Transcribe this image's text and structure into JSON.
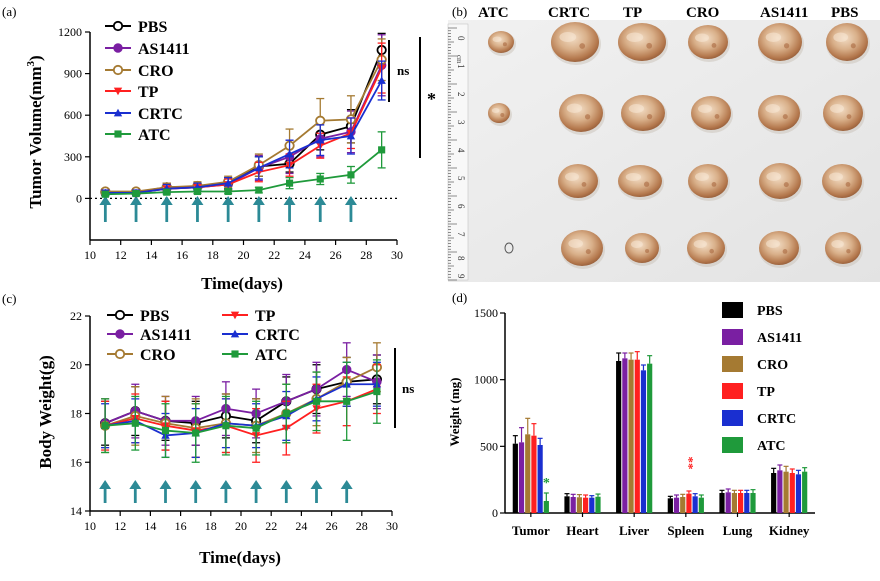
{
  "colors": {
    "PBS": "#000000",
    "AS1411": "#7a1fa2",
    "CRO": "#a57a32",
    "TP": "#ff2020",
    "CRTC": "#1a2fd0",
    "ATC": "#1f9a3b",
    "arrow": "#2c8a96"
  },
  "chart_data": [
    {
      "panel": "(a)",
      "type": "line",
      "xlabel": "Time(days)",
      "ylabel": "Tumor Volume(mm3)",
      "ylabel_main": "Tumor Volume(mm",
      "ylabel_sup": "3",
      "ylabel_end": ")",
      "xlim": [
        10,
        30
      ],
      "ylim": [
        -300,
        1200
      ],
      "xticks": [
        "10",
        "12",
        "14",
        "16",
        "18",
        "20",
        "22",
        "24",
        "26",
        "28",
        "30"
      ],
      "yticks": [
        "0",
        "300",
        "600",
        "900",
        "1200"
      ],
      "x": [
        11,
        13,
        15,
        17,
        19,
        21,
        23,
        25,
        27,
        29
      ],
      "arrow_days": [
        11,
        13,
        15,
        17,
        19,
        21,
        23,
        25,
        27
      ],
      "legend": [
        "PBS",
        "AS1411",
        "CRO",
        "TP",
        "CRTC",
        "ATC"
      ],
      "series": [
        {
          "name": "PBS",
          "marker": "circle-open",
          "values": [
            45,
            45,
            80,
            85,
            110,
            230,
            250,
            460,
            520,
            1070
          ],
          "err": [
            20,
            20,
            30,
            30,
            40,
            70,
            60,
            110,
            120,
            120
          ]
        },
        {
          "name": "AS1411",
          "marker": "circle",
          "values": [
            40,
            40,
            70,
            80,
            100,
            220,
            300,
            430,
            480,
            960
          ],
          "err": [
            20,
            20,
            30,
            30,
            40,
            90,
            120,
            130,
            150,
            220
          ]
        },
        {
          "name": "CRO",
          "marker": "circle-open",
          "values": [
            50,
            50,
            80,
            90,
            120,
            240,
            380,
            560,
            570,
            1000
          ],
          "err": [
            20,
            20,
            30,
            30,
            40,
            80,
            120,
            160,
            170,
            150
          ]
        },
        {
          "name": "TP",
          "marker": "triangle-down",
          "values": [
            40,
            40,
            70,
            80,
            100,
            190,
            240,
            380,
            470,
            940
          ],
          "err": [
            20,
            20,
            30,
            30,
            40,
            70,
            80,
            90,
            110,
            180
          ]
        },
        {
          "name": "CRTC",
          "marker": "triangle-up",
          "values": [
            40,
            40,
            70,
            80,
            110,
            220,
            320,
            420,
            450,
            850
          ],
          "err": [
            20,
            20,
            30,
            30,
            40,
            80,
            100,
            110,
            130,
            140
          ]
        },
        {
          "name": "ATC",
          "marker": "square",
          "values": [
            30,
            35,
            45,
            50,
            50,
            60,
            110,
            140,
            170,
            350
          ],
          "err": [
            10,
            10,
            15,
            15,
            15,
            20,
            40,
            40,
            60,
            130
          ]
        }
      ],
      "annotations": [
        "ns",
        "*"
      ]
    },
    {
      "panel": "(c)",
      "type": "line",
      "xlabel": "Time(days)",
      "ylabel": "Body Weight(g)",
      "xlim": [
        10,
        30
      ],
      "ylim": [
        14,
        22
      ],
      "xticks": [
        "10",
        "12",
        "14",
        "16",
        "18",
        "20",
        "22",
        "24",
        "26",
        "28",
        "30"
      ],
      "yticks": [
        "14",
        "16",
        "18",
        "20",
        "22"
      ],
      "x": [
        11,
        13,
        15,
        17,
        19,
        21,
        23,
        25,
        27,
        29
      ],
      "arrow_days": [
        11,
        13,
        15,
        17,
        19,
        21,
        23,
        25,
        27
      ],
      "legend": [
        "PBS",
        "TP",
        "AS1411",
        "CRTC",
        "CRO",
        "ATC"
      ],
      "series": [
        {
          "name": "PBS",
          "marker": "circle-open",
          "values": [
            17.6,
            18.1,
            17.7,
            17.6,
            17.9,
            17.7,
            18.5,
            19.0,
            19.3,
            19.4
          ],
          "err": [
            0.9,
            1.0,
            0.8,
            0.9,
            0.9,
            0.9,
            1.0,
            1.0,
            1.0,
            1.0
          ]
        },
        {
          "name": "AS1411",
          "marker": "circle",
          "values": [
            17.6,
            18.1,
            17.7,
            17.7,
            18.2,
            18.0,
            18.5,
            19.0,
            19.8,
            19.3
          ],
          "err": [
            1.0,
            1.1,
            1.0,
            1.0,
            1.1,
            1.0,
            1.1,
            1.1,
            1.1,
            1.1
          ]
        },
        {
          "name": "CRO",
          "marker": "circle-open",
          "values": [
            17.5,
            17.9,
            17.6,
            17.4,
            17.6,
            17.5,
            18.0,
            18.6,
            19.3,
            19.9
          ],
          "err": [
            1.1,
            1.2,
            1.1,
            1.2,
            1.2,
            1.1,
            1.2,
            1.1,
            1.0,
            1.0
          ]
        },
        {
          "name": "TP",
          "marker": "triangle-down",
          "values": [
            17.5,
            17.8,
            17.5,
            17.3,
            17.5,
            17.1,
            17.4,
            18.2,
            18.5,
            19.0
          ],
          "err": [
            1.0,
            1.0,
            1.0,
            1.1,
            1.1,
            1.1,
            1.1,
            1.0,
            1.0,
            1.0
          ]
        },
        {
          "name": "CRTC",
          "marker": "triangle-up",
          "values": [
            17.5,
            17.7,
            17.1,
            17.2,
            17.6,
            17.5,
            17.9,
            18.6,
            19.2,
            19.2
          ],
          "err": [
            0.9,
            0.9,
            0.9,
            1.0,
            1.0,
            0.9,
            1.0,
            0.9,
            0.9,
            0.9
          ]
        },
        {
          "name": "ATC",
          "marker": "square",
          "values": [
            17.5,
            17.6,
            17.3,
            17.2,
            17.5,
            17.4,
            18.0,
            18.5,
            18.5,
            18.9
          ],
          "err": [
            1.1,
            1.1,
            1.1,
            1.2,
            1.2,
            1.1,
            1.2,
            1.2,
            1.6,
            1.3
          ]
        }
      ],
      "annotations": [
        "ns"
      ]
    },
    {
      "panel": "(d)",
      "type": "bar",
      "ylabel": "Weight (mg)",
      "ylim": [
        0,
        1500
      ],
      "yticks": [
        "0",
        "500",
        "1000",
        "1500"
      ],
      "categories": [
        "Tumor",
        "Heart",
        "Liver",
        "Spleen",
        "Lung",
        "Kidney"
      ],
      "legend": [
        "PBS",
        "AS1411",
        "CRO",
        "TP",
        "CRTC",
        "ATC"
      ],
      "series": [
        {
          "name": "PBS",
          "values": [
            520,
            125,
            1140,
            110,
            150,
            300
          ],
          "err": [
            60,
            20,
            60,
            15,
            20,
            35
          ]
        },
        {
          "name": "AS1411",
          "values": [
            530,
            120,
            1160,
            115,
            155,
            320
          ],
          "err": [
            110,
            20,
            40,
            20,
            25,
            40
          ]
        },
        {
          "name": "CRO",
          "values": [
            590,
            118,
            1150,
            120,
            150,
            310
          ],
          "err": [
            120,
            20,
            50,
            20,
            20,
            40
          ]
        },
        {
          "name": "TP",
          "values": [
            580,
            115,
            1150,
            145,
            150,
            300
          ],
          "err": [
            90,
            20,
            60,
            20,
            20,
            30
          ]
        },
        {
          "name": "CRTC",
          "values": [
            510,
            115,
            1070,
            125,
            150,
            290
          ],
          "err": [
            50,
            15,
            40,
            20,
            20,
            30
          ]
        },
        {
          "name": "ATC",
          "values": [
            90,
            122,
            1120,
            115,
            150,
            310
          ],
          "err": [
            60,
            20,
            60,
            20,
            25,
            30
          ]
        }
      ],
      "annotations": {
        "tumor_star": "*",
        "spleen_stars": "**"
      }
    }
  ],
  "photo_panel": {
    "panel": "(b)",
    "labels": [
      "ATC",
      "CRTC",
      "TP",
      "CRO",
      "AS1411",
      "PBS"
    ],
    "ruler_numbers": [
      "0",
      "1",
      "2",
      "3",
      "4",
      "5",
      "6",
      "7",
      "8",
      "9"
    ],
    "ruler_unit": "cm"
  }
}
